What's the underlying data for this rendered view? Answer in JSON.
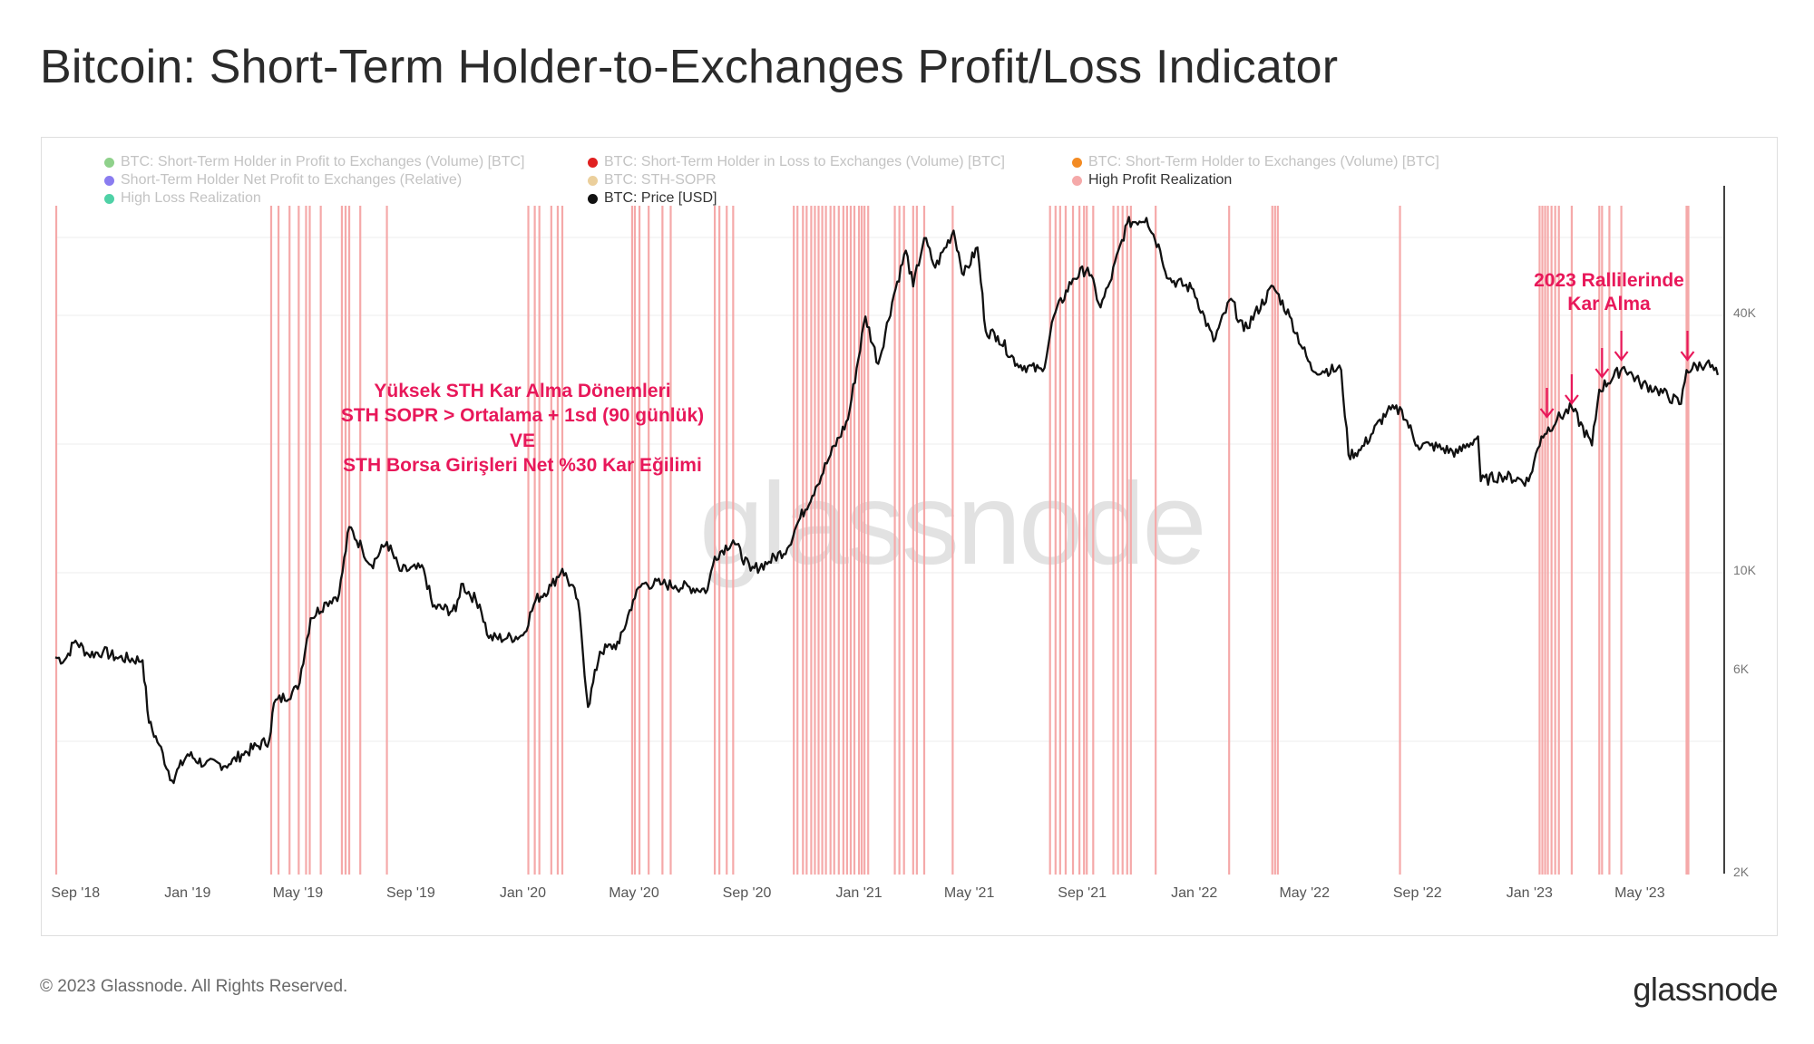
{
  "title": "Bitcoin: Short-Term Holder-to-Exchanges Profit/Loss Indicator",
  "footer": {
    "copyright": "© 2023 Glassnode. All Rights Reserved.",
    "logo": "glassnode"
  },
  "watermark": "glassnode",
  "legend": [
    {
      "label": "BTC: Short-Term Holder in Profit to Exchanges (Volume) [BTC]",
      "color": "#8fd18b",
      "active": false
    },
    {
      "label": "BTC: Short-Term Holder in Loss to Exchanges (Volume) [BTC]",
      "color": "#e02020",
      "active": false
    },
    {
      "label": "BTC: Short-Term Holder to Exchanges (Volume) [BTC]",
      "color": "#f38b23",
      "active": false
    },
    {
      "label": "Short-Term Holder Net Profit to Exchanges (Relative)",
      "color": "#8a7cf0",
      "active": false
    },
    {
      "label": "BTC: STH-SOPR",
      "color": "#ebcf9c",
      "active": false
    },
    {
      "label": "High Profit Realization",
      "color": "#f5a9a9",
      "active": true
    },
    {
      "label": "High Loss Realization",
      "color": "#4fd1a6",
      "active": false
    },
    {
      "label": "BTC: Price [USD]",
      "color": "#111111",
      "active": true
    }
  ],
  "annotations": {
    "left": [
      "Yüksek STH Kar Alma Dönemleri",
      "STH SOPR > Ortalama + 1sd (90 günlük)",
      "VE",
      "STH Borsa Girişleri Net %30 Kar Eğilimi"
    ],
    "right": [
      "2023 Rallilerinde",
      "Kar Alma"
    ],
    "color": "#e8185a"
  },
  "chart_data": {
    "type": "line",
    "x_axis": {
      "type": "date",
      "range": [
        "2018-08-10",
        "2023-08-01"
      ],
      "ticks": [
        "Sep '18",
        "Jan '19",
        "May '19",
        "Sep '19",
        "Jan '20",
        "May '20",
        "Sep '20",
        "Jan '21",
        "May '21",
        "Sep '21",
        "Jan '22",
        "May '22",
        "Sep '22",
        "Jan '23",
        "May '23"
      ]
    },
    "y_axis": {
      "scale": "log",
      "range": [
        2000,
        80000
      ],
      "ticks": [
        "2K",
        "6K",
        "10K",
        "40K"
      ]
    },
    "series": [
      {
        "name": "BTC: Price [USD]",
        "color": "#111111",
        "points": [
          [
            "2018-08-10",
            6400
          ],
          [
            "2018-08-20",
            6300
          ],
          [
            "2018-09-01",
            7000
          ],
          [
            "2018-09-15",
            6500
          ],
          [
            "2018-10-01",
            6600
          ],
          [
            "2018-10-15",
            6400
          ],
          [
            "2018-11-13",
            6300
          ],
          [
            "2018-11-20",
            4500
          ],
          [
            "2018-12-01",
            4000
          ],
          [
            "2018-12-15",
            3300
          ],
          [
            "2019-01-01",
            3800
          ],
          [
            "2019-01-20",
            3600
          ],
          [
            "2019-02-15",
            3600
          ],
          [
            "2019-03-01",
            3800
          ],
          [
            "2019-03-31",
            4100
          ],
          [
            "2019-04-05",
            5000
          ],
          [
            "2019-05-01",
            5400
          ],
          [
            "2019-05-15",
            7900
          ],
          [
            "2019-06-01",
            8600
          ],
          [
            "2019-06-15",
            9000
          ],
          [
            "2019-06-26",
            12900
          ],
          [
            "2019-07-10",
            11500
          ],
          [
            "2019-07-20",
            10500
          ],
          [
            "2019-08-06",
            11900
          ],
          [
            "2019-08-20",
            10200
          ],
          [
            "2019-09-15",
            10300
          ],
          [
            "2019-09-25",
            8400
          ],
          [
            "2019-10-20",
            8200
          ],
          [
            "2019-10-26",
            9500
          ],
          [
            "2019-11-15",
            8500
          ],
          [
            "2019-11-25",
            7100
          ],
          [
            "2019-12-15",
            7100
          ],
          [
            "2020-01-01",
            7200
          ],
          [
            "2020-01-15",
            8700
          ],
          [
            "2020-02-01",
            9400
          ],
          [
            "2020-02-13",
            10300
          ],
          [
            "2020-03-01",
            8700
          ],
          [
            "2020-03-12",
            4900
          ],
          [
            "2020-03-25",
            6600
          ],
          [
            "2020-04-15",
            6900
          ],
          [
            "2020-04-30",
            8700
          ],
          [
            "2020-05-10",
            9500
          ],
          [
            "2020-06-01",
            9500
          ],
          [
            "2020-06-15",
            9400
          ],
          [
            "2020-07-20",
            9200
          ],
          [
            "2020-07-28",
            11000
          ],
          [
            "2020-08-17",
            12000
          ],
          [
            "2020-09-05",
            10200
          ],
          [
            "2020-09-25",
            10700
          ],
          [
            "2020-10-15",
            11500
          ],
          [
            "2020-10-25",
            13000
          ],
          [
            "2020-11-15",
            16000
          ],
          [
            "2020-12-01",
            19000
          ],
          [
            "2020-12-20",
            23000
          ],
          [
            "2021-01-08",
            40000
          ],
          [
            "2021-01-22",
            31000
          ],
          [
            "2021-02-08",
            45000
          ],
          [
            "2021-02-21",
            57000
          ],
          [
            "2021-03-01",
            47000
          ],
          [
            "2021-03-13",
            61000
          ],
          [
            "2021-03-25",
            52000
          ],
          [
            "2021-04-14",
            63500
          ],
          [
            "2021-04-25",
            50000
          ],
          [
            "2021-05-10",
            58000
          ],
          [
            "2021-05-19",
            37000
          ],
          [
            "2021-06-01",
            36000
          ],
          [
            "2021-06-22",
            31000
          ],
          [
            "2021-07-20",
            29800
          ],
          [
            "2021-08-01",
            40000
          ],
          [
            "2021-08-22",
            49000
          ],
          [
            "2021-09-07",
            52000
          ],
          [
            "2021-09-21",
            42000
          ],
          [
            "2021-10-01",
            48000
          ],
          [
            "2021-10-20",
            66000
          ],
          [
            "2021-11-10",
            68000
          ],
          [
            "2021-11-25",
            57000
          ],
          [
            "2021-12-04",
            49000
          ],
          [
            "2021-12-31",
            46300
          ],
          [
            "2022-01-22",
            35000
          ],
          [
            "2022-02-10",
            44000
          ],
          [
            "2022-02-24",
            37000
          ],
          [
            "2022-03-28",
            47000
          ],
          [
            "2022-04-15",
            40000
          ],
          [
            "2022-05-09",
            30000
          ],
          [
            "2022-06-10",
            30000
          ],
          [
            "2022-06-18",
            19000
          ],
          [
            "2022-07-01",
            19500
          ],
          [
            "2022-07-30",
            24000
          ],
          [
            "2022-08-15",
            24200
          ],
          [
            "2022-09-01",
            20000
          ],
          [
            "2022-09-15",
            20000
          ],
          [
            "2022-10-15",
            19200
          ],
          [
            "2022-11-06",
            21000
          ],
          [
            "2022-11-09",
            16500
          ],
          [
            "2022-12-01",
            17000
          ],
          [
            "2022-12-31",
            16500
          ],
          [
            "2023-01-14",
            21000
          ],
          [
            "2023-01-31",
            23000
          ],
          [
            "2023-02-16",
            24500
          ],
          [
            "2023-03-10",
            20000
          ],
          [
            "2023-03-18",
            27000
          ],
          [
            "2023-04-14",
            30500
          ],
          [
            "2023-05-01",
            28000
          ],
          [
            "2023-05-20",
            27000
          ],
          [
            "2023-06-15",
            25000
          ],
          [
            "2023-06-21",
            30000
          ],
          [
            "2023-07-13",
            31200
          ],
          [
            "2023-07-25",
            29200
          ]
        ]
      },
      {
        "name": "High Profit Realization",
        "color": "#f5a9a9",
        "type": "vertical_markers",
        "dates": [
          "2018-08-11",
          "2019-04-02",
          "2019-04-10",
          "2019-04-22",
          "2019-05-02",
          "2019-05-10",
          "2019-05-14",
          "2019-05-26",
          "2019-06-18",
          "2019-06-22",
          "2019-06-26",
          "2019-07-08",
          "2019-08-06",
          "2020-01-07",
          "2020-01-14",
          "2020-01-19",
          "2020-02-01",
          "2020-02-08",
          "2020-02-13",
          "2020-04-29",
          "2020-05-02",
          "2020-05-07",
          "2020-05-17",
          "2020-06-01",
          "2020-06-10",
          "2020-07-28",
          "2020-08-02",
          "2020-08-10",
          "2020-08-17",
          "2020-10-22",
          "2020-10-26",
          "2020-11-01",
          "2020-11-05",
          "2020-11-10",
          "2020-11-14",
          "2020-11-18",
          "2020-11-22",
          "2020-11-26",
          "2020-12-01",
          "2020-12-05",
          "2020-12-10",
          "2020-12-15",
          "2020-12-19",
          "2020-12-23",
          "2020-12-27",
          "2021-01-01",
          "2021-01-04",
          "2021-01-07",
          "2021-01-11",
          "2021-02-09",
          "2021-02-14",
          "2021-02-19",
          "2021-03-01",
          "2021-03-05",
          "2021-03-13",
          "2021-04-13",
          "2021-07-28",
          "2021-08-03",
          "2021-08-08",
          "2021-08-14",
          "2021-08-22",
          "2021-08-29",
          "2021-09-03",
          "2021-09-06",
          "2021-09-13",
          "2021-10-05",
          "2021-10-10",
          "2021-10-15",
          "2021-10-20",
          "2021-10-24",
          "2021-11-20",
          "2022-02-08",
          "2022-03-27",
          "2022-03-30",
          "2022-04-02",
          "2022-08-13",
          "2023-01-12",
          "2023-01-15",
          "2023-01-18",
          "2023-01-21",
          "2023-01-25",
          "2023-01-29",
          "2023-02-02",
          "2023-02-16",
          "2023-03-18",
          "2023-03-21",
          "2023-03-29",
          "2023-04-11",
          "2023-06-21",
          "2023-06-23"
        ]
      }
    ],
    "arrows": [
      "2023-01-20",
      "2023-02-16",
      "2023-03-21",
      "2023-04-11",
      "2023-06-22"
    ],
    "legend_position": "top-left",
    "grid": "horizontal"
  }
}
